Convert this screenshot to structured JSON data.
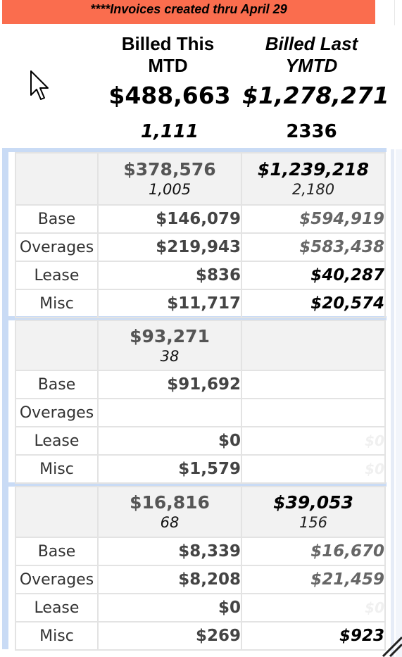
{
  "banner": {
    "text": "****Invoices created thru  April 29"
  },
  "header": {
    "this_mtd": {
      "label_line1": "Billed This",
      "label_line2": "MTD",
      "total": "$488,663",
      "count": "1,111"
    },
    "last_ymtd": {
      "label_line1": "Billed Last",
      "label_line2": "YMTD",
      "total": "$1,278,271",
      "count": "2336"
    }
  },
  "row_labels": {
    "base": "Base",
    "overages": "Overages",
    "lease": "Lease",
    "misc": "Misc"
  },
  "groups": [
    {
      "this": {
        "total": "$378,576",
        "count": "1,005"
      },
      "last": {
        "total": "$1,239,218",
        "count": "2,180"
      },
      "rows": {
        "base": {
          "this": "$146,079",
          "last": "$594,919"
        },
        "overages": {
          "this": "$219,943",
          "last": "$583,438"
        },
        "lease": {
          "this": "$836",
          "last": "$40,287"
        },
        "misc": {
          "this": "$11,717",
          "last": "$20,574"
        }
      }
    },
    {
      "this": {
        "total": "$93,271",
        "count": "38"
      },
      "last": {
        "total": "",
        "count": ""
      },
      "rows": {
        "base": {
          "this": "$91,692",
          "last": ""
        },
        "overages": {
          "this": "",
          "last": ""
        },
        "lease": {
          "this": "$0",
          "last": "$0"
        },
        "misc": {
          "this": "$1,579",
          "last": "$0"
        }
      }
    },
    {
      "this": {
        "total": "$16,816",
        "count": "68"
      },
      "last": {
        "total": "$39,053",
        "count": "156"
      },
      "rows": {
        "base": {
          "this": "$8,339",
          "last": "$16,670"
        },
        "overages": {
          "this": "$8,208",
          "last": "$21,459"
        },
        "lease": {
          "this": "$0",
          "last": "$0"
        },
        "misc": {
          "this": "$269",
          "last": "$923"
        }
      }
    }
  ],
  "colors": {
    "banner": "#fa6d4e",
    "frame": "#c9dbf5",
    "subtotal_bg": "#f2f2f2",
    "grid_line": "#e3e3e3"
  },
  "icons": {
    "cursor": "mouse-pointer-icon"
  }
}
